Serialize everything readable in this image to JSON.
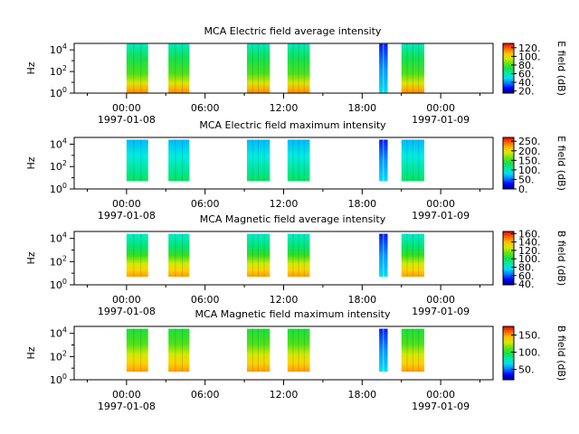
{
  "chart_data": [
    {
      "type": "heatmap",
      "title": "MCA  Electric field average intensity",
      "ylabel": "Hz",
      "yscale": "log",
      "ylim_exp": [
        0,
        4.6
      ],
      "ytick_labels": [
        "10^0",
        "10^2",
        "10^4"
      ],
      "xlim_hours": [
        -4,
        28
      ],
      "xticks": [
        "00:00",
        "06:00",
        "12:00",
        "18:00",
        "00:00"
      ],
      "xtick_dates": [
        "1997-01-08",
        "",
        "",
        "",
        "1997-01-09"
      ],
      "colorbar": {
        "label": "E field (dB)",
        "range": [
          15,
          130
        ],
        "ticks": [
          20,
          40,
          60,
          80,
          100,
          120
        ],
        "tick_labels": [
          "20.",
          "40.",
          "60.",
          "80.",
          "100.",
          "120."
        ]
      },
      "segments_hours": [
        [
          0,
          1.65
        ],
        [
          3.2,
          4.8
        ],
        [
          9.2,
          10.95
        ],
        [
          12.3,
          14.0
        ],
        [
          19.3,
          19.95
        ],
        [
          21.0,
          22.75
        ]
      ],
      "segment_top_exp": 4.55,
      "segment_style": "electric"
    },
    {
      "type": "heatmap",
      "title": "MCA  Electric field maximum intensity",
      "ylabel": "Hz",
      "yscale": "log",
      "ylim_exp": [
        0,
        4.6
      ],
      "ytick_labels": [
        "10^0",
        "10^2",
        "10^4"
      ],
      "xlim_hours": [
        -4,
        28
      ],
      "xticks": [
        "00:00",
        "06:00",
        "12:00",
        "18:00",
        "00:00"
      ],
      "xtick_dates": [
        "1997-01-08",
        "",
        "",
        "",
        "1997-01-09"
      ],
      "colorbar": {
        "label": "E field (dB)",
        "range": [
          0,
          270
        ],
        "ticks": [
          0,
          50,
          100,
          150,
          200,
          250
        ],
        "tick_labels": [
          "0.",
          "50.",
          "100.",
          "150.",
          "200.",
          "250."
        ]
      },
      "segments_hours": [
        [
          0,
          1.65
        ],
        [
          3.2,
          4.8
        ],
        [
          9.2,
          10.95
        ],
        [
          12.3,
          14.0
        ],
        [
          19.3,
          19.95
        ],
        [
          21.0,
          22.75
        ]
      ],
      "segment_top_exp": 4.4,
      "segment_bottom_exp": 0.7,
      "segment_style": "electric-max"
    },
    {
      "type": "heatmap",
      "title": "MCA  Magnetic field average intensity",
      "ylabel": "Hz",
      "yscale": "log",
      "ylim_exp": [
        0,
        4.6
      ],
      "ytick_labels": [
        "10^0",
        "10^2",
        "10^4"
      ],
      "xlim_hours": [
        -4,
        28
      ],
      "xticks": [
        "00:00",
        "06:00",
        "12:00",
        "18:00",
        "00:00"
      ],
      "xtick_dates": [
        "1997-01-08",
        "",
        "",
        "",
        "1997-01-09"
      ],
      "colorbar": {
        "label": "B field (dB)",
        "range": [
          38,
          165
        ],
        "ticks": [
          40,
          60,
          80,
          100,
          120,
          140,
          160
        ],
        "tick_labels": [
          "40.",
          "60.",
          "80.",
          "100.",
          "120.",
          "140.",
          "160."
        ]
      },
      "segments_hours": [
        [
          0,
          1.65
        ],
        [
          3.2,
          4.8
        ],
        [
          9.2,
          10.95
        ],
        [
          12.3,
          14.0
        ],
        [
          19.3,
          19.95
        ],
        [
          21.0,
          22.75
        ]
      ],
      "segment_top_exp": 4.4,
      "segment_bottom_exp": 0.7,
      "segment_style": "magnetic"
    },
    {
      "type": "heatmap",
      "title": "MCA  Magnetic field maximum intensity",
      "ylabel": "Hz",
      "yscale": "log",
      "ylim_exp": [
        0,
        4.6
      ],
      "ytick_labels": [
        "10^0",
        "10^2",
        "10^4"
      ],
      "xlim_hours": [
        -4,
        28
      ],
      "xticks": [
        "00:00",
        "06:00",
        "12:00",
        "18:00",
        "00:00"
      ],
      "xtick_dates": [
        "1997-01-08",
        "",
        "",
        "",
        "1997-01-09"
      ],
      "colorbar": {
        "label": "B field (dB)",
        "range": [
          20,
          175
        ],
        "ticks": [
          50,
          100,
          150
        ],
        "tick_labels": [
          "50.",
          "100.",
          "150."
        ]
      },
      "segments_hours": [
        [
          0,
          1.65
        ],
        [
          3.2,
          4.8
        ],
        [
          9.2,
          10.95
        ],
        [
          12.3,
          14.0
        ],
        [
          19.3,
          19.95
        ],
        [
          21.0,
          22.75
        ]
      ],
      "segment_top_exp": 4.4,
      "segment_bottom_exp": 0.7,
      "segment_style": "magnetic-max"
    }
  ]
}
